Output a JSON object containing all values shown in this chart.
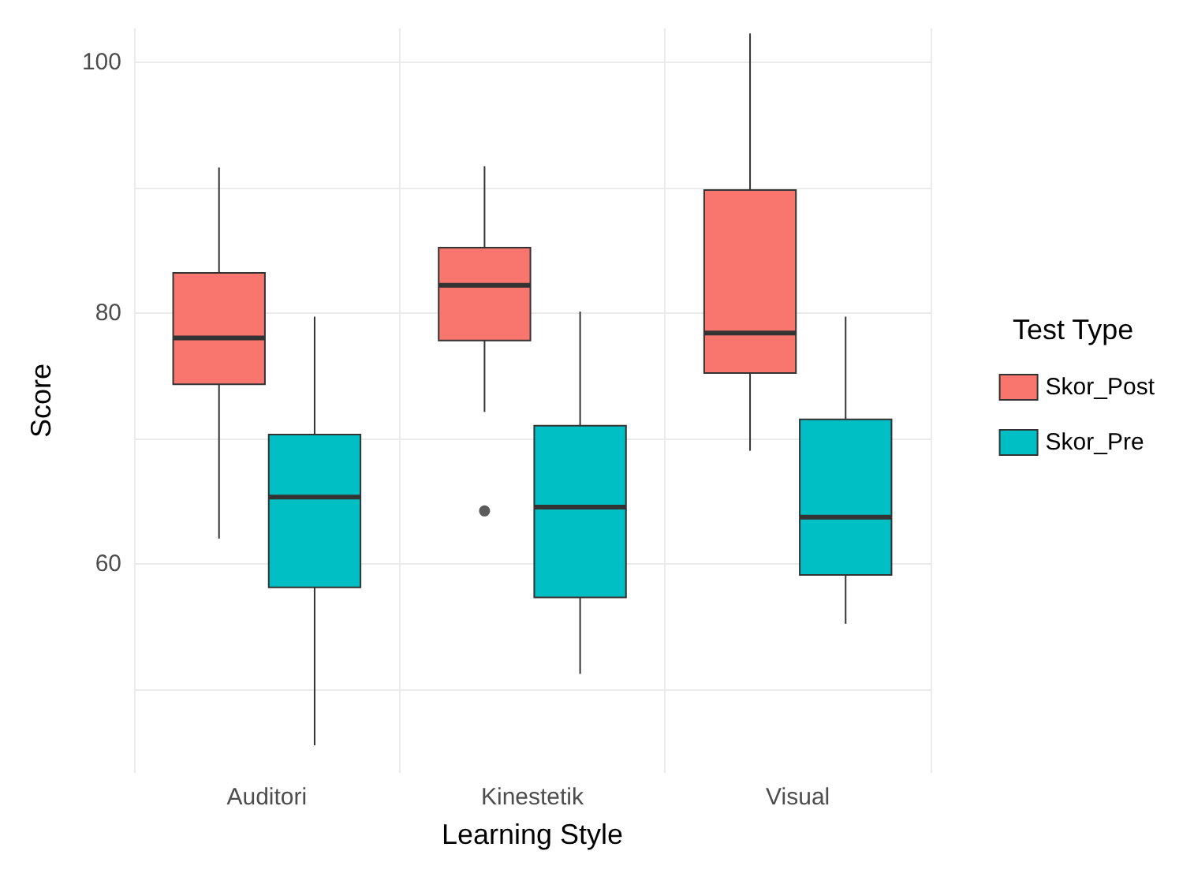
{
  "chart_data": {
    "type": "box",
    "xlabel": "Learning Style",
    "ylabel": "Score",
    "legend_title": "Test Type",
    "categories": [
      "Auditori",
      "Kinestetik",
      "Visual"
    ],
    "series": [
      {
        "name": "Skor_Post",
        "color": "#f8766d",
        "boxes": [
          {
            "low": 62.0,
            "q1": 74.3,
            "median": 78.0,
            "q3": 83.2,
            "high": 91.6
          },
          {
            "low": 72.1,
            "q1": 77.8,
            "median": 82.2,
            "q3": 85.2,
            "high": 91.7,
            "outliers": [
              64.2
            ]
          },
          {
            "low": 69.0,
            "q1": 75.2,
            "median": 78.4,
            "q3": 89.8,
            "high": 102.3
          }
        ]
      },
      {
        "name": "Skor_Pre",
        "color": "#00bfc4",
        "boxes": [
          {
            "low": 45.5,
            "q1": 58.1,
            "median": 65.3,
            "q3": 70.3,
            "high": 79.7
          },
          {
            "low": 51.2,
            "q1": 57.3,
            "median": 64.5,
            "q3": 71.0,
            "high": 80.1
          },
          {
            "low": 55.2,
            "q1": 59.1,
            "median": 63.7,
            "q3": 71.5,
            "high": 79.7
          }
        ]
      }
    ],
    "ylim": [
      43.3,
      102.7
    ],
    "yticks": [
      {
        "value": 50,
        "label": null
      },
      60,
      {
        "value": 70,
        "label": null
      },
      80,
      {
        "value": 90,
        "label": null
      },
      100
    ],
    "grid": true,
    "legend": "right"
  }
}
